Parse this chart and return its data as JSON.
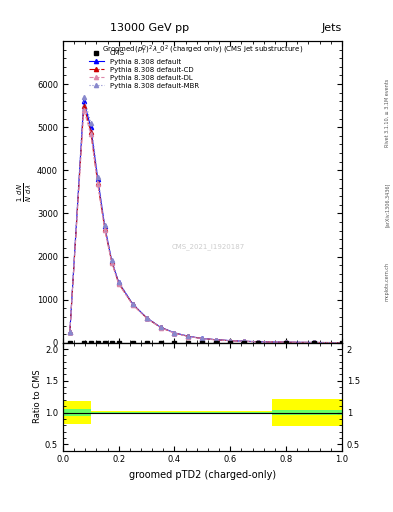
{
  "title_top": "13000 GeV pp",
  "title_right": "Jets",
  "plot_title": "Groomed$(p_T^D)^2\\lambda\\_0^2$ (charged only) (CMS jet substructure)",
  "xlabel": "groomed pTD2 (charged-only)",
  "ylabel": "$\\frac{1}{N}\\frac{dN}{d\\lambda}$",
  "ratio_ylabel": "Ratio to CMS",
  "watermark": "CMS_2021_I1920187",
  "rivet_text": "Rivet 3.1.10, ≥ 3.1M events",
  "arxiv_text": "[arXiv:1306.3436]",
  "mcplots_text": "mcplots.cern.ch",
  "x_data": [
    0.025,
    0.075,
    0.1,
    0.125,
    0.15,
    0.175,
    0.2,
    0.25,
    0.3,
    0.35,
    0.4,
    0.45,
    0.5,
    0.55,
    0.6,
    0.65,
    0.7,
    0.8,
    0.9,
    1.0
  ],
  "cms_y": [
    0,
    0,
    0,
    0,
    0,
    0,
    0,
    0,
    0,
    0,
    0,
    0,
    0,
    0,
    0,
    0,
    0,
    0,
    0,
    0
  ],
  "pythia_default_y": [
    250,
    5600,
    5000,
    3800,
    2700,
    1900,
    1400,
    900,
    580,
    360,
    230,
    150,
    100,
    70,
    50,
    35,
    25,
    13,
    7,
    4
  ],
  "pythia_cd_y": [
    250,
    5500,
    4900,
    3700,
    2650,
    1880,
    1380,
    890,
    575,
    355,
    225,
    148,
    98,
    68,
    48,
    34,
    24,
    12,
    7,
    4
  ],
  "pythia_dl_y": [
    250,
    5400,
    4850,
    3680,
    2620,
    1860,
    1360,
    880,
    570,
    350,
    222,
    145,
    96,
    66,
    47,
    33,
    23,
    12,
    6,
    3
  ],
  "pythia_mbr_y": [
    250,
    5700,
    5100,
    3850,
    2720,
    1920,
    1410,
    905,
    582,
    362,
    232,
    152,
    101,
    71,
    51,
    36,
    26,
    14,
    7,
    4
  ],
  "ratio_bins_x": [
    0.0,
    0.1,
    0.15,
    0.3,
    0.75,
    1.0
  ],
  "ratio_yellow_low": [
    0.82,
    0.97,
    0.97,
    0.97,
    0.78,
    0.78
  ],
  "ratio_yellow_high": [
    1.18,
    1.03,
    1.03,
    1.03,
    1.22,
    1.22
  ],
  "ratio_green_low": [
    0.94,
    0.99,
    0.99,
    0.99,
    0.96,
    0.96
  ],
  "ratio_green_high": [
    1.06,
    1.01,
    1.01,
    1.01,
    1.04,
    1.04
  ],
  "colors": {
    "default": "#0000ff",
    "cd": "#cc0000",
    "dl": "#dd88aa",
    "mbr": "#8888cc"
  },
  "ylim_main": [
    0,
    7000
  ],
  "yticks_main": [
    0,
    1000,
    2000,
    3000,
    4000,
    5000,
    6000
  ],
  "xlim": [
    0.0,
    1.0
  ],
  "ratio_ylim": [
    0.4,
    2.1
  ],
  "ratio_yticks": [
    0.5,
    1.0,
    1.5,
    2.0
  ]
}
